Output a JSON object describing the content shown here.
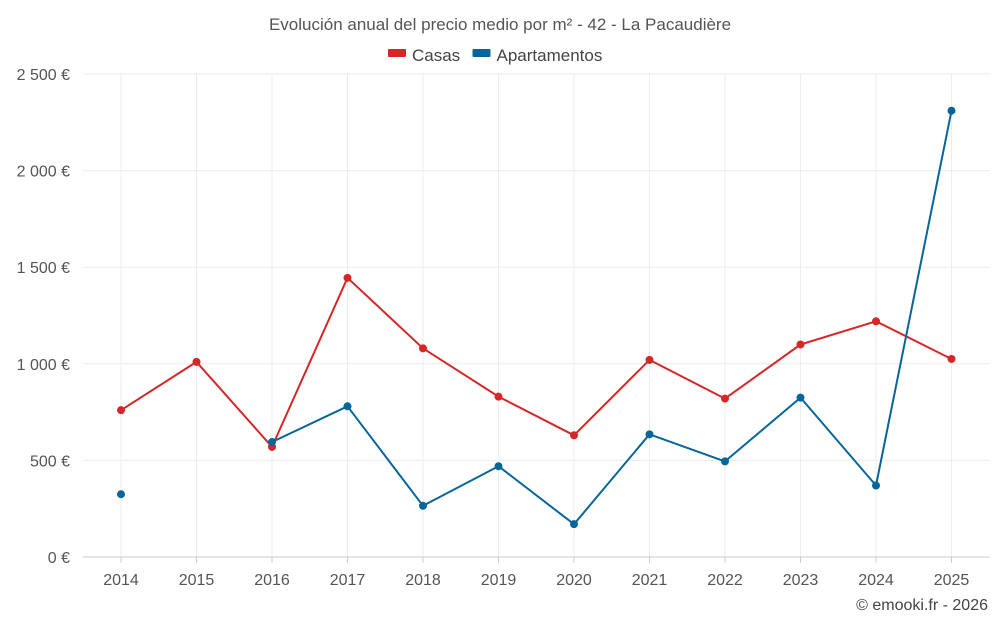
{
  "chart_data": {
    "type": "line",
    "title": "Evolución anual del precio medio por m² - 42 - La Pacaudière",
    "categories": [
      "2014",
      "2015",
      "2016",
      "2017",
      "2018",
      "2019",
      "2020",
      "2021",
      "2022",
      "2023",
      "2024",
      "2025"
    ],
    "series": [
      {
        "name": "Casas",
        "color": "#d62728",
        "values": [
          760,
          1010,
          570,
          1445,
          1080,
          830,
          630,
          1020,
          820,
          1100,
          1220,
          1025
        ]
      },
      {
        "name": "Apartamentos",
        "color": "#08659a",
        "values": [
          325,
          null,
          595,
          780,
          265,
          470,
          170,
          635,
          495,
          825,
          370,
          2310
        ]
      }
    ],
    "ylim": [
      0,
      2500
    ],
    "yticks": [
      0,
      500,
      1000,
      1500,
      2000,
      2500
    ],
    "ytick_labels": [
      "0 €",
      "500 €",
      "1 000 €",
      "1 500 €",
      "2 000 €",
      "2 500 €"
    ],
    "grid": true,
    "legend": "top-center"
  },
  "credit": "© emooki.fr - 2026"
}
